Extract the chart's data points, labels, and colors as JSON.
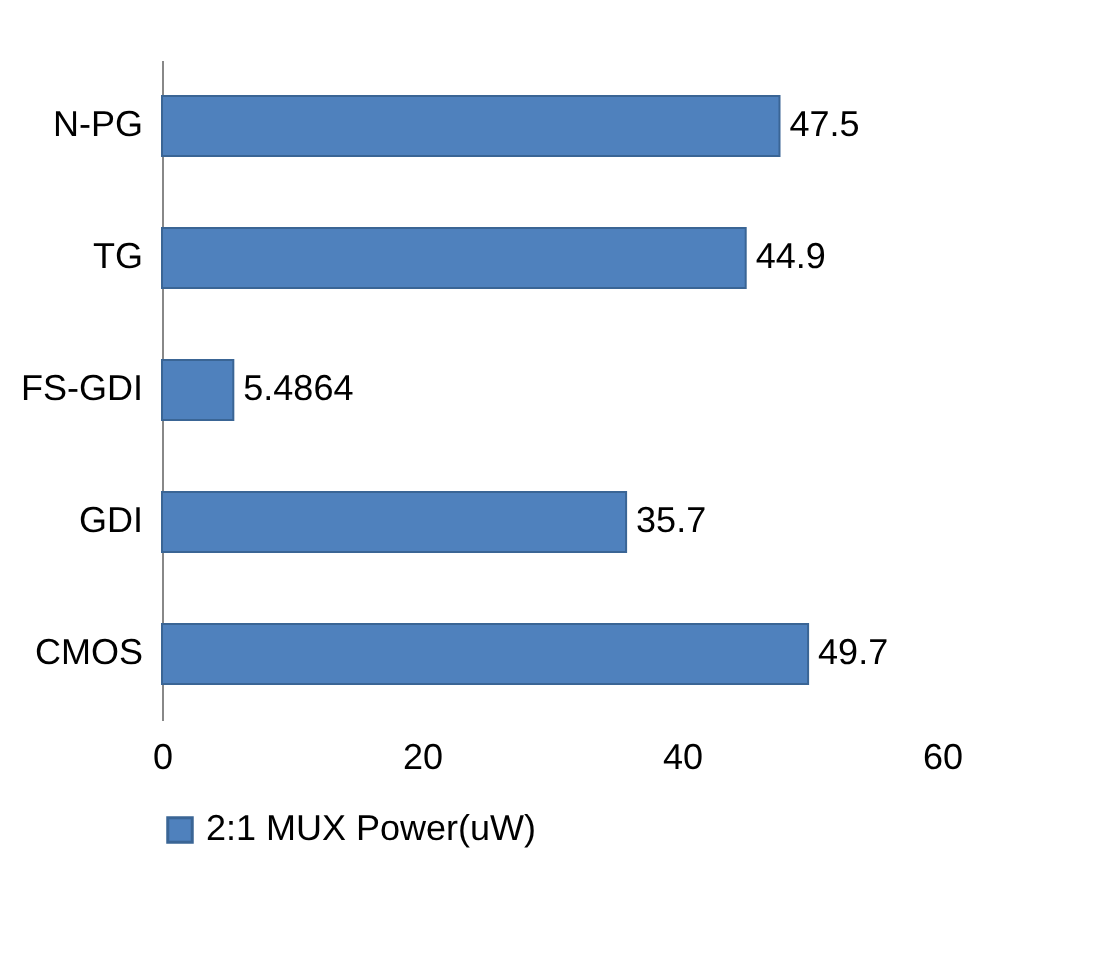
{
  "chart_data": {
    "type": "bar",
    "orientation": "horizontal",
    "categories": [
      "N-PG",
      "TG",
      "FS-GDI",
      "GDI",
      "CMOS"
    ],
    "series": [
      {
        "name": "2:1 MUX Power(uW)",
        "color": "#4f81bd",
        "values": [
          47.5,
          44.9,
          5.4864,
          35.7,
          49.7
        ]
      }
    ],
    "xlim": [
      0,
      60
    ],
    "xticks": [
      0,
      20,
      40,
      60
    ],
    "grid": false,
    "legend": "bottom",
    "data_labels": true
  }
}
